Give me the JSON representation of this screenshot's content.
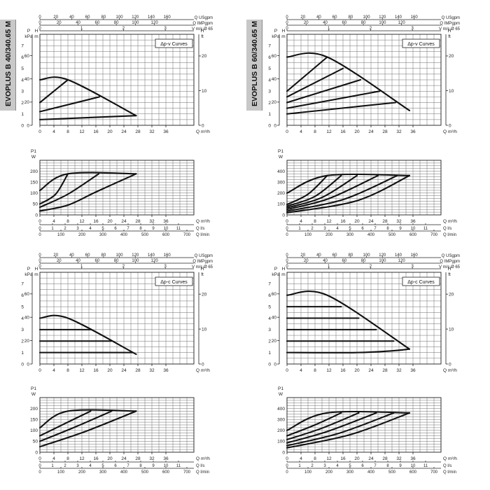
{
  "models": [
    {
      "name": "EVOPLUS B 40/340.65 M"
    },
    {
      "name": "EVOPLUS B 60/340.65 M"
    }
  ],
  "labels": {
    "usgpm": "Q USgpm",
    "impgpm": "Q IMPgpm",
    "velocity": "V m/s Ø 65",
    "p_unit": "P",
    "kpa": "kPa",
    "h_unit": "H",
    "m": "m",
    "ft": "ft",
    "q_m3h": "Q m³/h",
    "p1": "P1",
    "w": "W",
    "q_ls": "Q l/s",
    "q_lmin": "Q l/min"
  },
  "chart_data": [
    {
      "type": "line",
      "model": "EVOPLUS B 40/340.65 M",
      "mode_label": "Δp-v Curves",
      "xlabel": "Q m³/h",
      "ylabel": "H m",
      "xlim": [
        0,
        44
      ],
      "ylim": [
        0,
        8
      ],
      "x_ticks": [
        0,
        4,
        8,
        12,
        16,
        20,
        24,
        28,
        32,
        36
      ],
      "y_ticks": [
        0,
        1,
        2,
        3,
        4,
        5,
        6,
        7
      ],
      "kpa_ticks": [
        0,
        20,
        40,
        60
      ],
      "ft_ticks": [
        0,
        10,
        20
      ],
      "usgpm_ticks": [
        0,
        20,
        40,
        60,
        80,
        100,
        120,
        140,
        160
      ],
      "impgpm_ticks": [
        0,
        20,
        40,
        60,
        80,
        100,
        120
      ],
      "v_ticks": [
        0,
        1,
        2,
        3,
        4,
        5
      ],
      "series": [
        {
          "points": [
            [
              0,
              4.0
            ],
            [
              8.0,
              4.0
            ],
            [
              27.5,
              0.85
            ]
          ]
        },
        {
          "points": [
            [
              0,
              2.0
            ],
            [
              8.0,
              4.0
            ]
          ]
        },
        {
          "points": [
            [
              0,
              1.2
            ],
            [
              17.0,
              2.5
            ]
          ]
        },
        {
          "points": [
            [
              0,
              0.5
            ],
            [
              27.5,
              0.85
            ]
          ]
        }
      ]
    },
    {
      "type": "line",
      "model": "EVOPLUS B 40/340.65 M",
      "xlabel": "Q m³/h",
      "ylabel": "P1 W",
      "xlim": [
        0,
        44
      ],
      "ylim": [
        0,
        250
      ],
      "x_ticks": [
        0,
        4,
        8,
        12,
        16,
        20,
        24,
        28,
        32,
        36
      ],
      "y_ticks": [
        0,
        50,
        100,
        150,
        200
      ],
      "ls_ticks": [
        0,
        1,
        2,
        3,
        4,
        5,
        6,
        7,
        8,
        9,
        10,
        11
      ],
      "lmin_ticks": [
        0,
        100,
        200,
        300,
        400,
        500,
        600,
        700
      ],
      "series": [
        {
          "points": [
            [
              0,
              112
            ],
            [
              8.0,
              188
            ],
            [
              27.5,
              188
            ]
          ]
        },
        {
          "points": [
            [
              0,
              50
            ],
            [
              4.5,
              95
            ],
            [
              8.0,
              188
            ]
          ]
        },
        {
          "points": [
            [
              0,
              35
            ],
            [
              8.0,
              95
            ],
            [
              16.8,
              188
            ]
          ]
        },
        {
          "points": [
            [
              0,
              18
            ],
            [
              8.0,
              45
            ],
            [
              16.0,
              105
            ],
            [
              27.5,
              188
            ]
          ]
        }
      ]
    },
    {
      "type": "line",
      "model": "EVOPLUS B 60/340.65 M",
      "mode_label": "Δp-v Curves",
      "xlabel": "Q m³/h",
      "ylabel": "H m",
      "xlim": [
        0,
        44
      ],
      "ylim": [
        0,
        8
      ],
      "x_ticks": [
        0,
        4,
        8,
        12,
        16,
        20,
        24,
        28,
        32,
        36
      ],
      "y_ticks": [
        0,
        1,
        2,
        3,
        4,
        5,
        6,
        7
      ],
      "kpa_ticks": [
        0,
        20,
        40,
        60
      ],
      "ft_ticks": [
        0,
        10,
        20
      ],
      "usgpm_ticks": [
        0,
        20,
        40,
        60,
        80,
        100,
        120,
        140,
        160
      ],
      "impgpm_ticks": [
        0,
        20,
        40,
        60,
        80,
        100,
        120
      ],
      "v_ticks": [
        0,
        1,
        2,
        3,
        4,
        5
      ],
      "series": [
        {
          "points": [
            [
              0,
              6.0
            ],
            [
              11.5,
              6.0
            ],
            [
              35.0,
              1.3
            ]
          ]
        },
        {
          "points": [
            [
              0,
              3.0
            ],
            [
              11.5,
              6.0
            ]
          ]
        },
        {
          "points": [
            [
              0,
              2.5
            ],
            [
              16.0,
              5.0
            ]
          ]
        },
        {
          "points": [
            [
              0,
              2.0
            ],
            [
              21.0,
              4.0
            ]
          ]
        },
        {
          "points": [
            [
              0,
              1.5
            ],
            [
              26.5,
              3.0
            ]
          ]
        },
        {
          "points": [
            [
              0,
              1.0
            ],
            [
              31.0,
              2.0
            ]
          ]
        }
      ]
    },
    {
      "type": "line",
      "model": "EVOPLUS B 60/340.65 M",
      "xlabel": "Q m³/h",
      "ylabel": "P1 W",
      "xlim": [
        0,
        44
      ],
      "ylim": [
        0,
        500
      ],
      "x_ticks": [
        0,
        4,
        8,
        12,
        16,
        20,
        24,
        28,
        32,
        36
      ],
      "y_ticks": [
        0,
        100,
        200,
        300,
        400
      ],
      "ls_ticks": [
        0,
        1,
        2,
        3,
        4,
        5,
        6,
        7,
        8,
        9,
        10,
        11
      ],
      "lmin_ticks": [
        0,
        100,
        200,
        300,
        400,
        500,
        600,
        700
      ],
      "series": [
        {
          "points": [
            [
              0,
              200
            ],
            [
              11.5,
              360
            ],
            [
              35.0,
              360
            ]
          ]
        },
        {
          "points": [
            [
              0,
              95
            ],
            [
              6.0,
              190
            ],
            [
              11.5,
              360
            ]
          ]
        },
        {
          "points": [
            [
              0,
              80
            ],
            [
              8.0,
              170
            ],
            [
              15.5,
              360
            ]
          ]
        },
        {
          "points": [
            [
              0,
              65
            ],
            [
              10.0,
              160
            ],
            [
              20.0,
              360
            ]
          ]
        },
        {
          "points": [
            [
              0,
              50
            ],
            [
              12.0,
              150
            ],
            [
              26.0,
              360
            ]
          ]
        },
        {
          "points": [
            [
              0,
              35
            ],
            [
              16.0,
              140
            ],
            [
              31.5,
              360
            ]
          ]
        },
        {
          "points": [
            [
              0,
              20
            ],
            [
              20.0,
              130
            ],
            [
              35.0,
              360
            ]
          ]
        }
      ]
    },
    {
      "type": "line",
      "model": "EVOPLUS B 40/340.65 M",
      "mode_label": "Δp-c Curves",
      "xlabel": "Q m³/h",
      "ylabel": "H m",
      "xlim": [
        0,
        44
      ],
      "ylim": [
        0,
        8
      ],
      "x_ticks": [
        0,
        4,
        8,
        12,
        16,
        20,
        24,
        28,
        32,
        36
      ],
      "y_ticks": [
        0,
        1,
        2,
        3,
        4,
        5,
        6,
        7
      ],
      "kpa_ticks": [
        0,
        20,
        40,
        60
      ],
      "ft_ticks": [
        0,
        10,
        20
      ],
      "usgpm_ticks": [
        0,
        20,
        40,
        60,
        80,
        100,
        120,
        140,
        160
      ],
      "impgpm_ticks": [
        0,
        20,
        40,
        60,
        80,
        100,
        120
      ],
      "v_ticks": [
        0,
        1,
        2,
        3,
        4,
        5
      ],
      "series": [
        {
          "points": [
            [
              0,
              4.0
            ],
            [
              8.0,
              4.0
            ],
            [
              27.5,
              0.85
            ]
          ]
        },
        {
          "points": [
            [
              0,
              3.0
            ],
            [
              14.5,
              3.0
            ]
          ]
        },
        {
          "points": [
            [
              0,
              2.0
            ],
            [
              20.5,
              2.0
            ]
          ]
        },
        {
          "points": [
            [
              0,
              1.0
            ],
            [
              26.5,
              1.0
            ]
          ]
        }
      ]
    },
    {
      "type": "line",
      "model": "EVOPLUS B 40/340.65 M",
      "xlabel": "Q m³/h",
      "ylabel": "P1 W",
      "xlim": [
        0,
        44
      ],
      "ylim": [
        0,
        250
      ],
      "x_ticks": [
        0,
        4,
        8,
        12,
        16,
        20,
        24,
        28,
        32,
        36
      ],
      "y_ticks": [
        0,
        50,
        100,
        150,
        200
      ],
      "ls_ticks": [
        0,
        1,
        2,
        3,
        4,
        5,
        6,
        7,
        8,
        9,
        10,
        11
      ],
      "lmin_ticks": [
        0,
        100,
        200,
        300,
        400,
        500,
        600,
        700
      ],
      "series": [
        {
          "points": [
            [
              0,
              112
            ],
            [
              8.0,
              188
            ],
            [
              27.5,
              188
            ]
          ]
        },
        {
          "points": [
            [
              0,
              75
            ],
            [
              7.0,
              130
            ],
            [
              14.5,
              188
            ]
          ]
        },
        {
          "points": [
            [
              0,
              50
            ],
            [
              10.0,
              115
            ],
            [
              20.5,
              188
            ]
          ]
        },
        {
          "points": [
            [
              0,
              25
            ],
            [
              13.0,
              95
            ],
            [
              27.5,
              188
            ]
          ]
        }
      ]
    },
    {
      "type": "line",
      "model": "EVOPLUS B 60/340.65 M",
      "mode_label": "Δp-c Curves",
      "xlabel": "Q m³/h",
      "ylabel": "H m",
      "xlim": [
        0,
        44
      ],
      "ylim": [
        0,
        8
      ],
      "x_ticks": [
        0,
        4,
        8,
        12,
        16,
        20,
        24,
        28,
        32,
        36
      ],
      "y_ticks": [
        0,
        1,
        2,
        3,
        4,
        5,
        6,
        7
      ],
      "kpa_ticks": [
        0,
        20,
        40,
        60
      ],
      "ft_ticks": [
        0,
        10,
        20
      ],
      "usgpm_ticks": [
        0,
        20,
        40,
        60,
        80,
        100,
        120,
        140,
        160
      ],
      "impgpm_ticks": [
        0,
        20,
        40,
        60,
        80,
        100,
        120
      ],
      "v_ticks": [
        0,
        1,
        2,
        3,
        4,
        5
      ],
      "series": [
        {
          "points": [
            [
              0,
              6.0
            ],
            [
              11.5,
              6.0
            ],
            [
              35.0,
              1.3
            ]
          ]
        },
        {
          "points": [
            [
              0,
              5.0
            ],
            [
              15.5,
              5.0
            ]
          ]
        },
        {
          "points": [
            [
              0,
              4.0
            ],
            [
              20.5,
              4.0
            ]
          ]
        },
        {
          "points": [
            [
              0,
              3.0
            ],
            [
              25.5,
              3.0
            ]
          ]
        },
        {
          "points": [
            [
              0,
              2.0
            ],
            [
              30.5,
              2.0
            ]
          ]
        },
        {
          "points": [
            [
              0,
              1.0
            ],
            [
              20.0,
              1.0
            ],
            [
              30.0,
              1.15
            ],
            [
              35.0,
              1.3
            ]
          ]
        }
      ]
    },
    {
      "type": "line",
      "model": "EVOPLUS B 60/340.65 M",
      "xlabel": "Q m³/h",
      "ylabel": "P1 W",
      "xlim": [
        0,
        44
      ],
      "ylim": [
        0,
        500
      ],
      "x_ticks": [
        0,
        4,
        8,
        12,
        16,
        20,
        24,
        28,
        32,
        36
      ],
      "y_ticks": [
        0,
        100,
        200,
        300,
        400
      ],
      "ls_ticks": [
        0,
        1,
        2,
        3,
        4,
        5,
        6,
        7,
        8,
        9,
        10,
        11
      ],
      "lmin_ticks": [
        0,
        100,
        200,
        300,
        400,
        500,
        600,
        700
      ],
      "series": [
        {
          "points": [
            [
              0,
              200
            ],
            [
              11.5,
              360
            ],
            [
              35.0,
              360
            ]
          ]
        },
        {
          "points": [
            [
              0,
              150
            ],
            [
              8.0,
              250
            ],
            [
              15.5,
              360
            ]
          ]
        },
        {
          "points": [
            [
              0,
              115
            ],
            [
              10.0,
              220
            ],
            [
              20.5,
              360
            ]
          ]
        },
        {
          "points": [
            [
              0,
              85
            ],
            [
              12.0,
              195
            ],
            [
              25.5,
              360
            ]
          ]
        },
        {
          "points": [
            [
              0,
              60
            ],
            [
              15.0,
              175
            ],
            [
              30.5,
              360
            ]
          ]
        },
        {
          "points": [
            [
              0,
              40
            ],
            [
              18.0,
              160
            ],
            [
              35.0,
              360
            ]
          ]
        }
      ]
    }
  ]
}
